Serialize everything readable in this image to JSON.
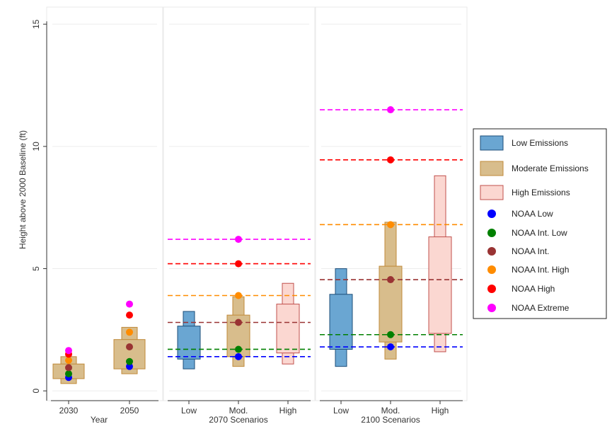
{
  "chart_data": {
    "type": "box",
    "ylabel": "Height above 2000 Baseline (ft)",
    "ylim": [
      -0.4,
      15.7
    ],
    "yticks": [
      0,
      5,
      10,
      15
    ],
    "grid": true,
    "legend_position": "right",
    "colors": {
      "low_fill": "#6aa6d2",
      "low_stroke": "#1e4f7a",
      "mod_fill": "#d8bd8c",
      "mod_stroke": "#c08a3a",
      "high_fill": "#fbd7d1",
      "high_stroke": "#c0504d",
      "noaa_low": "#0000ff",
      "noaa_int_low": "#008000",
      "noaa_int": "#993333",
      "noaa_int_high": "#ff8c00",
      "noaa_high": "#ff0000",
      "noaa_extreme": "#ff00ff"
    },
    "panels": [
      {
        "xlabel": "Year",
        "tick_labels": [
          "2030",
          "2050"
        ],
        "boxes": [
          {
            "category": "2030",
            "emission": "moderate",
            "outer": [
              0.3,
              1.4
            ],
            "inner": [
              0.5,
              1.1
            ]
          },
          {
            "category": "2050",
            "emission": "moderate",
            "outer": [
              0.7,
              2.6
            ],
            "inner": [
              0.9,
              2.1
            ]
          }
        ],
        "points": [
          {
            "category": "2030",
            "scenario": "noaa_low",
            "value": 0.55
          },
          {
            "category": "2030",
            "scenario": "noaa_int_low",
            "value": 0.7
          },
          {
            "category": "2030",
            "scenario": "noaa_int",
            "value": 0.95
          },
          {
            "category": "2030",
            "scenario": "noaa_int_high",
            "value": 1.25
          },
          {
            "category": "2030",
            "scenario": "noaa_high",
            "value": 1.5
          },
          {
            "category": "2030",
            "scenario": "noaa_extreme",
            "value": 1.65
          },
          {
            "category": "2050",
            "scenario": "noaa_low",
            "value": 1.0
          },
          {
            "category": "2050",
            "scenario": "noaa_int_low",
            "value": 1.2
          },
          {
            "category": "2050",
            "scenario": "noaa_int",
            "value": 1.8
          },
          {
            "category": "2050",
            "scenario": "noaa_int_high",
            "value": 2.4
          },
          {
            "category": "2050",
            "scenario": "noaa_high",
            "value": 3.1
          },
          {
            "category": "2050",
            "scenario": "noaa_extreme",
            "value": 3.55
          }
        ],
        "reference_lines": []
      },
      {
        "xlabel": "2070 Scenarios",
        "tick_labels": [
          "Low",
          "Mod.",
          "High"
        ],
        "boxes": [
          {
            "category": "Low",
            "emission": "low",
            "outer": [
              0.9,
              3.25
            ],
            "inner": [
              1.3,
              2.65
            ]
          },
          {
            "category": "Mod.",
            "emission": "moderate",
            "outer": [
              1.0,
              3.85
            ],
            "inner": [
              1.4,
              3.1
            ]
          },
          {
            "category": "High",
            "emission": "high",
            "outer": [
              1.1,
              4.4
            ],
            "inner": [
              1.55,
              3.55
            ]
          }
        ],
        "points": [
          {
            "category": "Mod.",
            "scenario": "noaa_low",
            "value": 1.4
          },
          {
            "category": "Mod.",
            "scenario": "noaa_int_low",
            "value": 1.7
          },
          {
            "category": "Mod.",
            "scenario": "noaa_int",
            "value": 2.8
          },
          {
            "category": "Mod.",
            "scenario": "noaa_int_high",
            "value": 3.9
          },
          {
            "category": "Mod.",
            "scenario": "noaa_high",
            "value": 5.2
          },
          {
            "category": "Mod.",
            "scenario": "noaa_extreme",
            "value": 6.2
          }
        ],
        "reference_lines": [
          {
            "scenario": "noaa_low",
            "value": 1.4
          },
          {
            "scenario": "noaa_int_low",
            "value": 1.7
          },
          {
            "scenario": "noaa_int",
            "value": 2.8
          },
          {
            "scenario": "noaa_int_high",
            "value": 3.9
          },
          {
            "scenario": "noaa_high",
            "value": 5.2
          },
          {
            "scenario": "noaa_extreme",
            "value": 6.2
          }
        ]
      },
      {
        "xlabel": "2100 Scenarios",
        "tick_labels": [
          "Low",
          "Mod.",
          "High"
        ],
        "boxes": [
          {
            "category": "Low",
            "emission": "low",
            "outer": [
              1.0,
              5.0
            ],
            "inner": [
              1.7,
              3.95
            ]
          },
          {
            "category": "Mod.",
            "emission": "moderate",
            "outer": [
              1.3,
              6.9
            ],
            "inner": [
              2.0,
              5.1
            ]
          },
          {
            "category": "High",
            "emission": "high",
            "outer": [
              1.6,
              8.8
            ],
            "inner": [
              2.35,
              6.3
            ]
          }
        ],
        "points": [
          {
            "category": "Mod.",
            "scenario": "noaa_low",
            "value": 1.8
          },
          {
            "category": "Mod.",
            "scenario": "noaa_int_low",
            "value": 2.3
          },
          {
            "category": "Mod.",
            "scenario": "noaa_int",
            "value": 4.55
          },
          {
            "category": "Mod.",
            "scenario": "noaa_int_high",
            "value": 6.8
          },
          {
            "category": "Mod.",
            "scenario": "noaa_high",
            "value": 9.45
          },
          {
            "category": "Mod.",
            "scenario": "noaa_extreme",
            "value": 11.5
          }
        ],
        "reference_lines": [
          {
            "scenario": "noaa_low",
            "value": 1.8
          },
          {
            "scenario": "noaa_int_low",
            "value": 2.3
          },
          {
            "scenario": "noaa_int",
            "value": 4.55
          },
          {
            "scenario": "noaa_int_high",
            "value": 6.8
          },
          {
            "scenario": "noaa_high",
            "value": 9.45
          },
          {
            "scenario": "noaa_extreme",
            "value": 11.5
          }
        ]
      }
    ],
    "legend": [
      {
        "key": "low",
        "kind": "box",
        "label": "Low Emissions"
      },
      {
        "key": "moderate",
        "kind": "box",
        "label": "Moderate Emissions"
      },
      {
        "key": "high",
        "kind": "box",
        "label": "High Emissions"
      },
      {
        "key": "noaa_low",
        "kind": "point",
        "label": "NOAA Low"
      },
      {
        "key": "noaa_int_low",
        "kind": "point",
        "label": "NOAA Int. Low"
      },
      {
        "key": "noaa_int",
        "kind": "point",
        "label": "NOAA Int."
      },
      {
        "key": "noaa_int_high",
        "kind": "point",
        "label": "NOAA Int. High"
      },
      {
        "key": "noaa_high",
        "kind": "point",
        "label": "NOAA High"
      },
      {
        "key": "noaa_extreme",
        "kind": "point",
        "label": "NOAA Extreme"
      }
    ]
  }
}
